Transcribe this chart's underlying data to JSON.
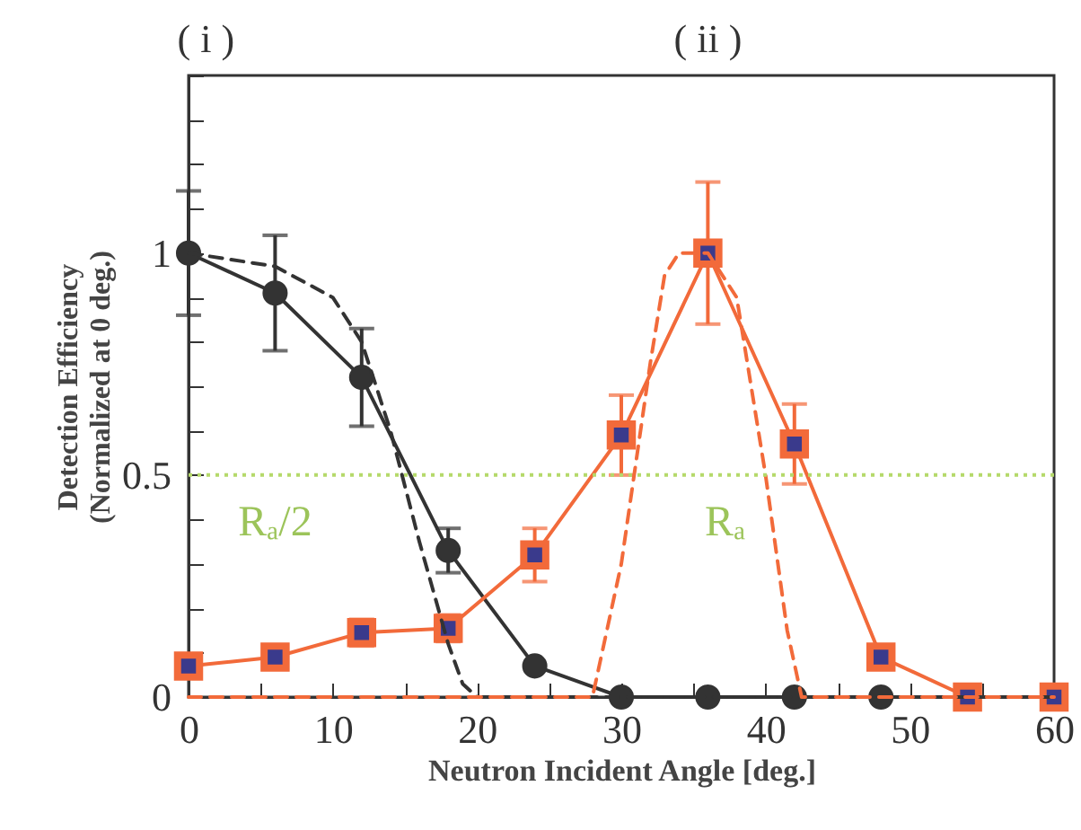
{
  "chart_data": {
    "type": "line",
    "xlabel": "Neutron Incident Angle   [deg.]",
    "ylabel": "Detection Efficiency\n(Normalized at 0 deg.)",
    "x": [
      0,
      6,
      12,
      18,
      24,
      30,
      36,
      42,
      48,
      54,
      60
    ],
    "series": [
      {
        "color": "#333333",
        "marker": "circle",
        "values": [
          1,
          0.91,
          0.72,
          0.33,
          0.07,
          0,
          0,
          0,
          0,
          null,
          0
        ],
        "errors": [
          0.14,
          0.13,
          0.11,
          0.05,
          null,
          null,
          null,
          null,
          null,
          null,
          null
        ]
      },
      {
        "color": "#f26a3a",
        "marker": "square",
        "values": [
          0.07,
          0.09,
          0.145,
          0.155,
          0.32,
          0.59,
          1,
          0.57,
          0.09,
          0,
          0
        ],
        "errors": [
          null,
          null,
          0.03,
          0.03,
          0.06,
          0.09,
          0.16,
          0.09,
          null,
          null,
          null
        ]
      },
      {
        "color": "#333333",
        "marker": "none",
        "line_style": "dashed",
        "x": [
          0,
          6,
          10,
          12,
          14,
          16,
          18,
          19,
          20,
          60
        ],
        "values": [
          1,
          0.97,
          0.9,
          0.8,
          0.6,
          0.35,
          0.12,
          0.03,
          0,
          0
        ]
      },
      {
        "color": "#f26a3a",
        "marker": "none",
        "line_style": "dashed",
        "x": [
          0,
          28,
          30,
          32,
          33,
          34,
          36,
          38,
          40,
          41.5,
          42.5,
          60
        ],
        "values": [
          0,
          0,
          0.3,
          0.75,
          0.95,
          1,
          1,
          0.9,
          0.5,
          0.15,
          0,
          0
        ]
      }
    ],
    "ref_lines": [
      {
        "axis": "y",
        "value": 0.5,
        "color": "#b5d96a",
        "line_style": "dotted"
      }
    ],
    "annotations": [
      "( i )",
      "( ii )",
      "Rₐ/2",
      "Rₐ"
    ],
    "xlim": [
      0,
      60
    ],
    "ylim": [
      0,
      1.4
    ],
    "xticks": [
      0,
      {
        "value": 5,
        "label": null
      },
      10,
      {
        "value": 15,
        "label": null
      },
      20,
      {
        "value": 25,
        "label": null
      },
      30,
      {
        "value": 35,
        "label": null
      },
      40,
      {
        "value": 45,
        "label": null
      },
      50,
      {
        "value": 55,
        "label": null
      },
      60
    ],
    "yticks": [
      0,
      {
        "value": 0.1,
        "label": null
      },
      {
        "value": 0.2,
        "label": null
      },
      {
        "value": 0.3,
        "label": null
      },
      {
        "value": 0.4,
        "label": null
      },
      0.5,
      {
        "value": 0.6,
        "label": null
      },
      {
        "value": 0.7,
        "label": null
      },
      {
        "value": 0.8,
        "label": null
      },
      {
        "value": 0.9,
        "label": null
      },
      1,
      {
        "value": 1.1,
        "label": null
      },
      {
        "value": 1.2,
        "label": null
      },
      {
        "value": 1.3,
        "label": null
      },
      {
        "value": 1.4,
        "label": null
      }
    ],
    "grid": false
  }
}
